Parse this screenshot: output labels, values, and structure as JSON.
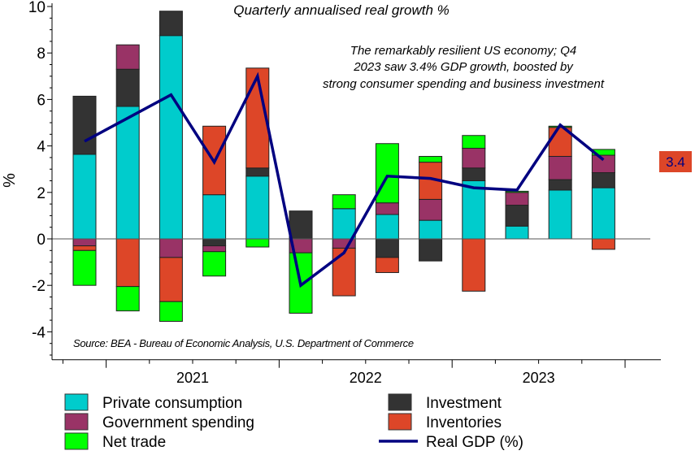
{
  "chart_data": {
    "type": "bar",
    "stacked": true,
    "title": "Quarterly annualised real growth %",
    "annotation": [
      "The remarkably resilient US economy; Q4",
      "2023 saw 3.4% GDP growth, boosted by",
      "strong consumer spending and business investment"
    ],
    "source": "Source: BEA - Bureau of Economic Analysis, U.S. Department of Commerce",
    "ylabel": "%",
    "xlabel": "",
    "ylim": [
      -5.2,
      10
    ],
    "yticks": [
      10,
      8,
      6,
      4,
      2,
      0,
      -2,
      -4
    ],
    "x_ticks": [
      "2021",
      "2022",
      "2023"
    ],
    "grid": false,
    "legend_position": "bottom",
    "last_value_label": "3.4",
    "series": [
      {
        "name": "Private consumption",
        "color": "#00cccc",
        "values": [
          3.64,
          5.7,
          8.75,
          1.9,
          2.7,
          0,
          1.3,
          1.05,
          0.8,
          2.5,
          0.55,
          2.1,
          2.2
        ]
      },
      {
        "name": "Investment",
        "color": "#333333",
        "values": [
          2.5,
          1.6,
          1.05,
          -0.3,
          0.35,
          1.2,
          0,
          -0.8,
          -0.95,
          0.55,
          0.9,
          0.45,
          0.65
        ]
      },
      {
        "name": "Government spending",
        "color": "#993366",
        "values": [
          -0.3,
          1.05,
          -0.8,
          -0.25,
          0,
          -0.6,
          -0.4,
          0.5,
          0.9,
          0.85,
          0.55,
          1.0,
          0.75
        ]
      },
      {
        "name": "Inventories",
        "color": "#dd4628",
        "values": [
          -0.2,
          -2.05,
          -1.9,
          2.95,
          4.3,
          0,
          -2.05,
          -0.65,
          1.6,
          -2.25,
          0,
          1.25,
          -0.45
        ]
      },
      {
        "name": "Net trade",
        "color": "#00ff00",
        "values": [
          -1.5,
          -1.05,
          -0.85,
          -1.05,
          -0.35,
          -2.6,
          0.6,
          2.55,
          0.25,
          0.55,
          0.05,
          0.05,
          0.25
        ]
      }
    ],
    "line_series": {
      "name": "Real GDP (%)",
      "color": "#000080",
      "values": [
        4.2,
        5.2,
        6.2,
        3.3,
        7.0,
        -2.0,
        -0.6,
        2.7,
        2.6,
        2.2,
        2.1,
        4.9,
        3.4
      ]
    },
    "legend_order": [
      "Private consumption",
      "Investment",
      "Government spending",
      "Inventories",
      "Net trade",
      "Real GDP (%)"
    ]
  }
}
